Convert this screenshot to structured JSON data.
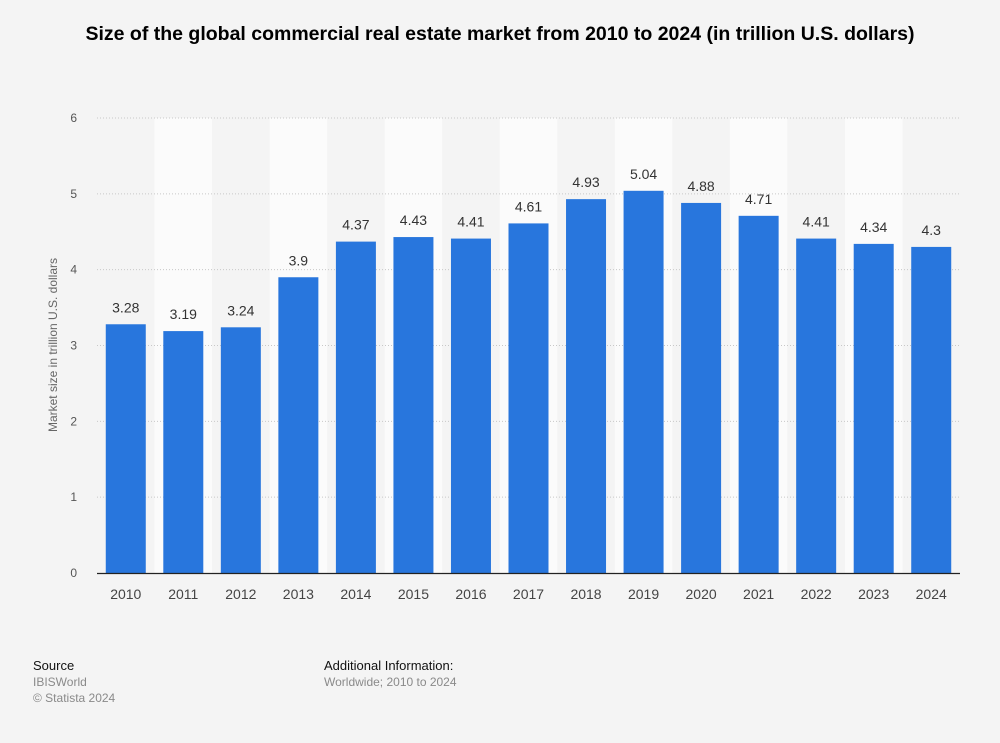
{
  "chart_data": {
    "type": "bar",
    "title": "Size of the global commercial real estate market from 2010 to 2024 (in trillion U.S. dollars)",
    "xlabel": "",
    "ylabel": "Market size in trillion U.S. dollars",
    "ylim": [
      0,
      6
    ],
    "yticks": [
      0,
      1,
      2,
      3,
      4,
      5,
      6
    ],
    "grid": true,
    "categories": [
      "2010",
      "2011",
      "2012",
      "2013",
      "2014",
      "2015",
      "2016",
      "2017",
      "2018",
      "2019",
      "2020",
      "2021",
      "2022",
      "2023",
      "2024"
    ],
    "values": [
      3.28,
      3.19,
      3.24,
      3.9,
      4.37,
      4.43,
      4.41,
      4.61,
      4.93,
      5.04,
      4.88,
      4.71,
      4.41,
      4.34,
      4.3
    ],
    "labels": [
      "3.28",
      "3.19",
      "3.24",
      "3.9",
      "4.37",
      "4.43",
      "4.41",
      "4.61",
      "4.93",
      "5.04",
      "4.88",
      "4.71",
      "4.41",
      "4.34",
      "4.3"
    ],
    "bar_color": "#2876dd"
  },
  "footer": {
    "source_heading": "Source",
    "source_lines": [
      "IBISWorld",
      "© Statista 2024"
    ],
    "info_heading": "Additional Information:",
    "info_text": "Worldwide; 2010 to 2024"
  }
}
